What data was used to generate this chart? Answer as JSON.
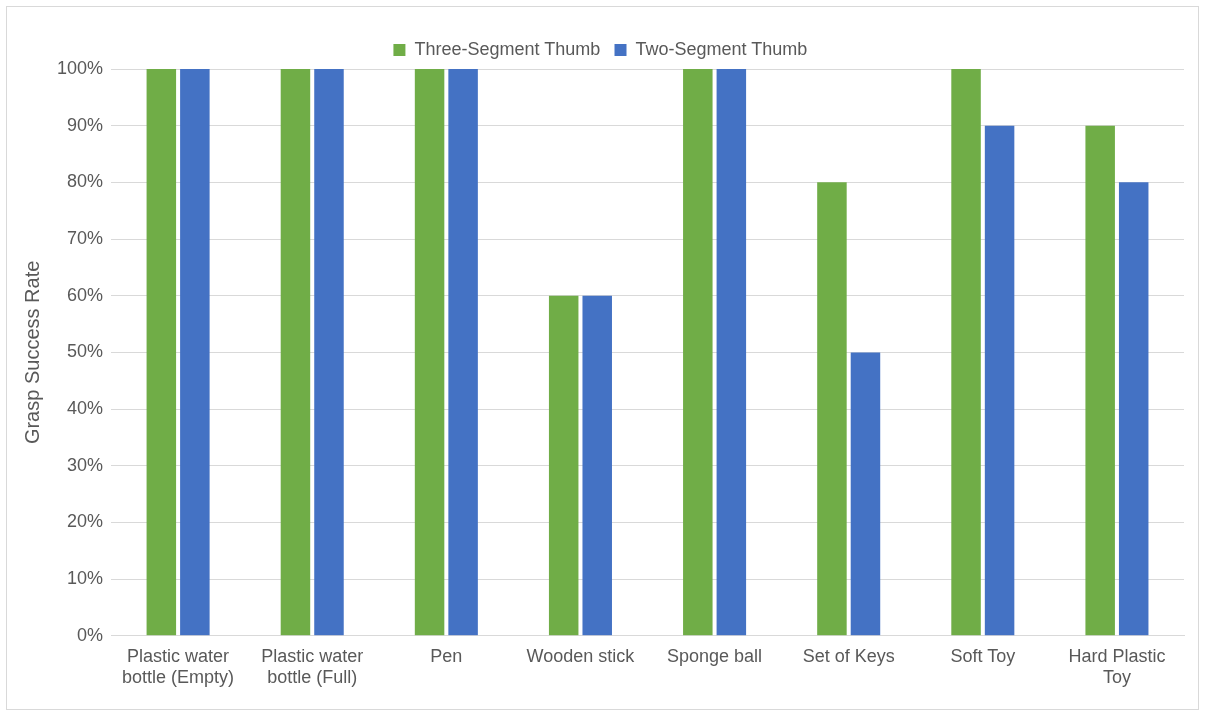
{
  "chart_data": {
    "type": "bar",
    "ylabel": "Grasp Success Rate",
    "categories": [
      "Plastic water bottle (Empty)",
      "Plastic water bottle (Full)",
      "Pen",
      "Wooden stick",
      "Sponge ball",
      "Set of Keys",
      "Soft Toy",
      "Hard Plastic Toy"
    ],
    "series": [
      {
        "name": "Three-Segment Thumb",
        "color": "#70ad47",
        "values": [
          100,
          100,
          100,
          60,
          100,
          80,
          100,
          90
        ]
      },
      {
        "name": "Two-Segment Thumb",
        "color": "#4472c4",
        "values": [
          100,
          100,
          100,
          60,
          100,
          50,
          90,
          80
        ]
      }
    ],
    "ylim": [
      0,
      100
    ],
    "yticks": [
      {
        "value": 0,
        "label": "0%"
      },
      {
        "value": 10,
        "label": "10%"
      },
      {
        "value": 20,
        "label": "20%"
      },
      {
        "value": 30,
        "label": "30%"
      },
      {
        "value": 40,
        "label": "40%"
      },
      {
        "value": 50,
        "label": "50%"
      },
      {
        "value": 60,
        "label": "60%"
      },
      {
        "value": 70,
        "label": "70%"
      },
      {
        "value": 80,
        "label": "80%"
      },
      {
        "value": 90,
        "label": "90%"
      },
      {
        "value": 100,
        "label": "100%"
      }
    ],
    "grid": "y",
    "legend": "top"
  }
}
